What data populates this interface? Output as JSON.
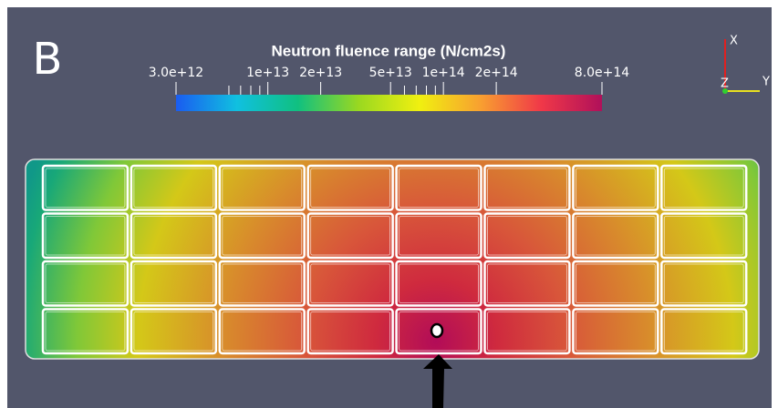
{
  "panel_label": "B",
  "colorbar": {
    "title": "Neutron fluence range (N/cm2s)",
    "scale": "log",
    "range": [
      3000000000000.0,
      800000000000000.0
    ],
    "ticks": [
      {
        "value": 3000000000000.0,
        "label": "3.0e+12"
      },
      {
        "value": 10000000000000.0,
        "label": "1e+13"
      },
      {
        "value": 20000000000000.0,
        "label": "2e+13"
      },
      {
        "value": 50000000000000.0,
        "label": "5e+13"
      },
      {
        "value": 100000000000000.0,
        "label": "1e+14"
      },
      {
        "value": 200000000000000.0,
        "label": "2e+14"
      },
      {
        "value": 800000000000000.0,
        "label": "8.0e+14"
      }
    ],
    "minor_ticks": [
      6000000000000.0,
      7000000000000.0,
      8000000000000.0,
      9000000000000.0,
      60000000000000.0,
      70000000000000.0,
      80000000000000.0,
      90000000000000.0
    ],
    "colors": [
      "#1a5cf0",
      "#10c0e0",
      "#10c080",
      "#9ad820",
      "#f0f010",
      "#f8a030",
      "#f03848",
      "#b0105a"
    ]
  },
  "axes": {
    "x": "X",
    "y": "Y",
    "z": "Z"
  }
}
